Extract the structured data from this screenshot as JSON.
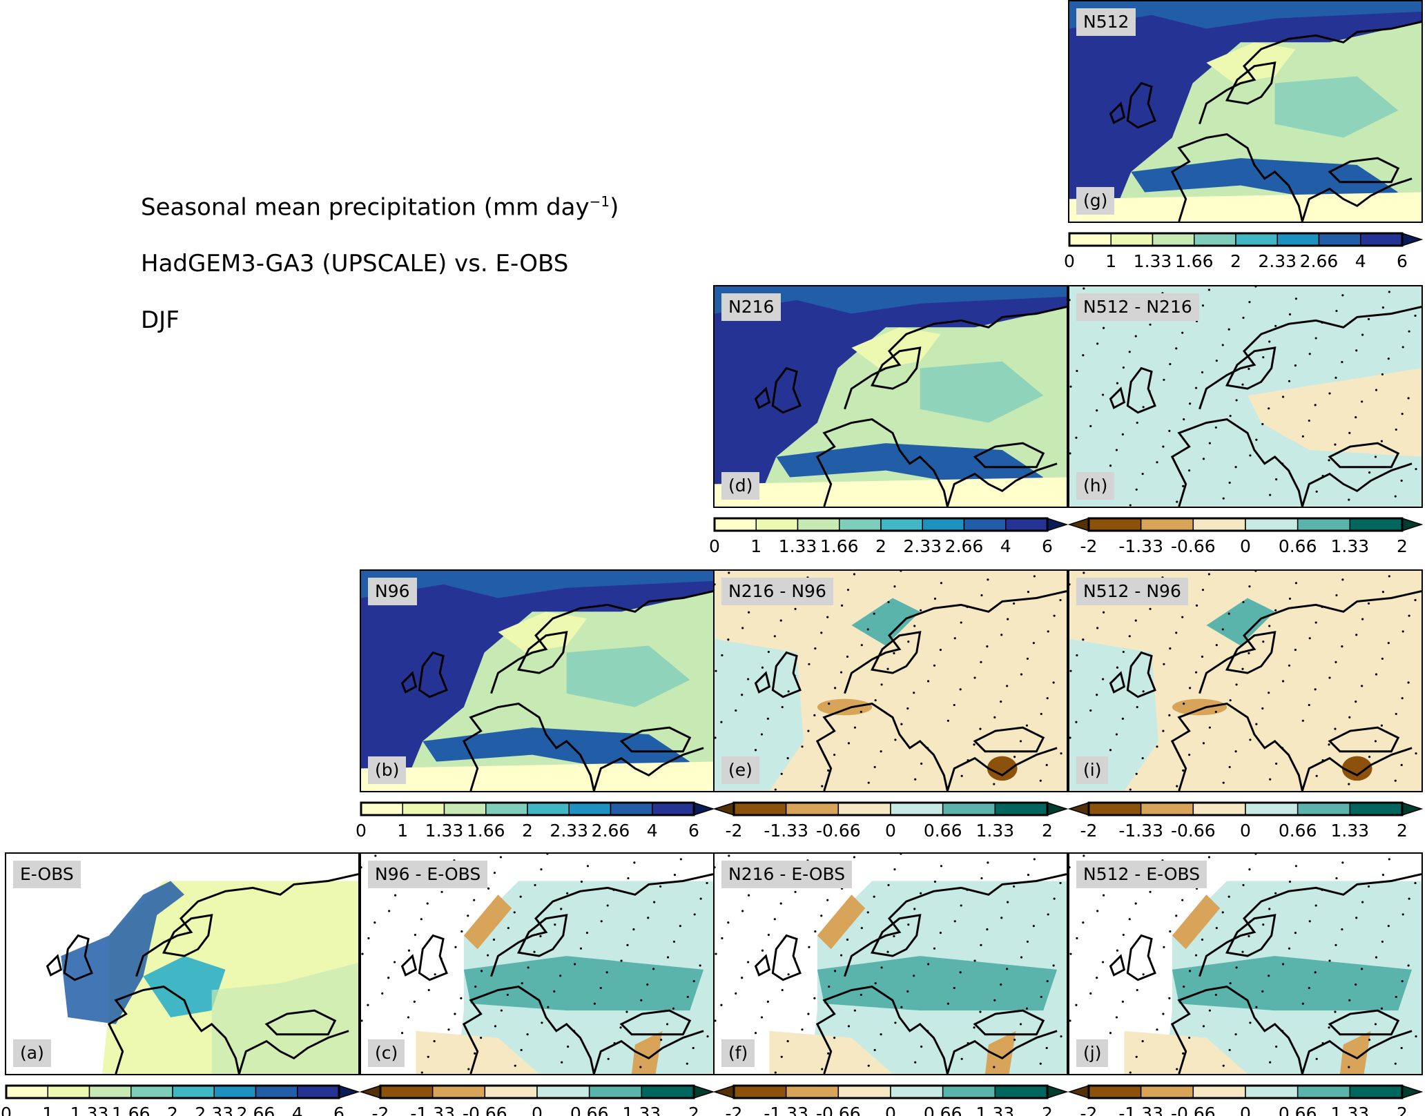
{
  "titles": {
    "line1": "Seasonal mean precipitation (mm day",
    "line1_sup": "−1",
    "line1_end": ")",
    "line2": "HadGEM3-GA3 (UPSCALE) vs. E-OBS",
    "line3": "DJF"
  },
  "chart_data": {
    "type": "heatmap",
    "description_panels": [
      {
        "id": "g",
        "name": "N512",
        "kind": "absolute"
      },
      {
        "id": "d",
        "name": "N216",
        "kind": "absolute"
      },
      {
        "id": "h",
        "name": "N512 - N216",
        "kind": "difference"
      },
      {
        "id": "b",
        "name": "N96",
        "kind": "absolute"
      },
      {
        "id": "e",
        "name": "N216 - N96",
        "kind": "difference"
      },
      {
        "id": "i",
        "name": "N512 - N96",
        "kind": "difference"
      },
      {
        "id": "a",
        "name": "E-OBS",
        "kind": "absolute"
      },
      {
        "id": "c",
        "name": "N96 - E-OBS",
        "kind": "difference"
      },
      {
        "id": "f",
        "name": "N216 - E-OBS",
        "kind": "difference"
      },
      {
        "id": "j",
        "name": "N512 - E-OBS",
        "kind": "difference"
      }
    ],
    "absolute_colorbar": {
      "ticks": [
        "0",
        "1",
        "1.33",
        "1.66",
        "2",
        "2.33",
        "2.66",
        "4",
        "6"
      ],
      "colors": [
        "#ffffcc",
        "#edf8b1",
        "#c7e9b4",
        "#7fcdbb",
        "#41b6c4",
        "#1d91c0",
        "#225ea8",
        "#253494"
      ],
      "extend": "max",
      "extend_color": "#081d58"
    },
    "difference_colorbar": {
      "ticks": [
        "-2",
        "-1.33",
        "-0.66",
        "0",
        "0.66",
        "1.33",
        "2"
      ],
      "colors": [
        "#8c510a",
        "#d8a45a",
        "#f6e8c3",
        "#c7eae5",
        "#5ab4ac",
        "#01665e"
      ],
      "extend": "both",
      "extend_low": "#543005",
      "extend_high": "#003c30"
    }
  }
}
